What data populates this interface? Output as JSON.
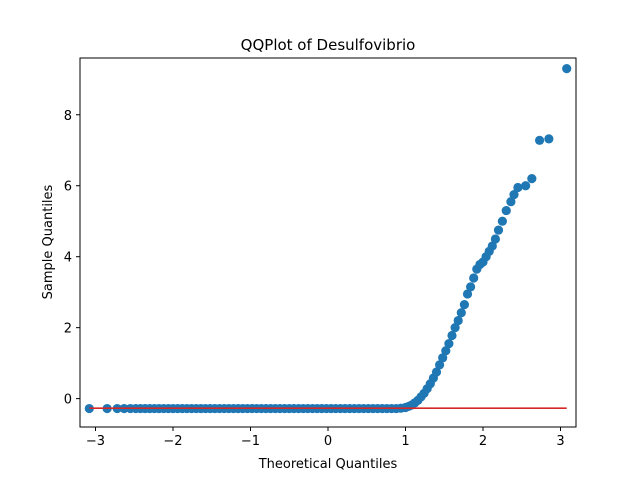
{
  "chart_data": {
    "type": "scatter",
    "title": "QQPlot of Desulfovibrio",
    "xlabel": "Theoretical Quantiles",
    "ylabel": "Sample Quantiles",
    "xlim": [
      -3.2,
      3.2
    ],
    "ylim": [
      -0.8,
      9.6
    ],
    "xticks": [
      -3,
      -2,
      -1,
      0,
      1,
      2,
      3
    ],
    "yticks": [
      0,
      2,
      4,
      6,
      8
    ],
    "grid": false,
    "marker_color": "#1f77b4",
    "line_color": "#d62728",
    "reference_line": {
      "x": [
        -3.08,
        3.08
      ],
      "y": [
        -0.27,
        -0.27
      ]
    },
    "series": [
      {
        "points": [
          [
            -3.08,
            -0.28
          ],
          [
            -2.85,
            -0.28
          ],
          [
            -2.72,
            -0.28
          ],
          [
            -2.63,
            -0.28
          ],
          [
            -2.55,
            -0.28
          ],
          [
            -2.48,
            -0.28
          ],
          [
            -2.42,
            -0.28
          ],
          [
            -2.36,
            -0.28
          ],
          [
            -2.3,
            -0.28
          ],
          [
            -2.24,
            -0.28
          ],
          [
            -2.18,
            -0.28
          ],
          [
            -2.12,
            -0.28
          ],
          [
            -2.06,
            -0.28
          ],
          [
            -2.0,
            -0.28
          ],
          [
            -1.94,
            -0.28
          ],
          [
            -1.88,
            -0.28
          ],
          [
            -1.82,
            -0.28
          ],
          [
            -1.76,
            -0.28
          ],
          [
            -1.7,
            -0.28
          ],
          [
            -1.64,
            -0.28
          ],
          [
            -1.58,
            -0.28
          ],
          [
            -1.52,
            -0.28
          ],
          [
            -1.46,
            -0.28
          ],
          [
            -1.4,
            -0.28
          ],
          [
            -1.34,
            -0.28
          ],
          [
            -1.28,
            -0.28
          ],
          [
            -1.22,
            -0.28
          ],
          [
            -1.16,
            -0.28
          ],
          [
            -1.1,
            -0.28
          ],
          [
            -1.04,
            -0.28
          ],
          [
            -0.98,
            -0.28
          ],
          [
            -0.92,
            -0.28
          ],
          [
            -0.86,
            -0.28
          ],
          [
            -0.8,
            -0.28
          ],
          [
            -0.74,
            -0.28
          ],
          [
            -0.68,
            -0.28
          ],
          [
            -0.62,
            -0.28
          ],
          [
            -0.56,
            -0.28
          ],
          [
            -0.5,
            -0.28
          ],
          [
            -0.44,
            -0.28
          ],
          [
            -0.38,
            -0.28
          ],
          [
            -0.32,
            -0.28
          ],
          [
            -0.26,
            -0.28
          ],
          [
            -0.2,
            -0.28
          ],
          [
            -0.14,
            -0.28
          ],
          [
            -0.08,
            -0.28
          ],
          [
            -0.02,
            -0.28
          ],
          [
            0.04,
            -0.28
          ],
          [
            0.1,
            -0.28
          ],
          [
            0.16,
            -0.28
          ],
          [
            0.22,
            -0.28
          ],
          [
            0.28,
            -0.28
          ],
          [
            0.34,
            -0.28
          ],
          [
            0.4,
            -0.28
          ],
          [
            0.46,
            -0.28
          ],
          [
            0.52,
            -0.28
          ],
          [
            0.58,
            -0.28
          ],
          [
            0.64,
            -0.28
          ],
          [
            0.7,
            -0.28
          ],
          [
            0.76,
            -0.28
          ],
          [
            0.82,
            -0.28
          ],
          [
            0.88,
            -0.28
          ],
          [
            0.94,
            -0.27
          ],
          [
            1.0,
            -0.25
          ],
          [
            1.04,
            -0.22
          ],
          [
            1.08,
            -0.18
          ],
          [
            1.12,
            -0.12
          ],
          [
            1.16,
            -0.05
          ],
          [
            1.2,
            0.05
          ],
          [
            1.24,
            0.15
          ],
          [
            1.28,
            0.28
          ],
          [
            1.32,
            0.42
          ],
          [
            1.36,
            0.58
          ],
          [
            1.4,
            0.75
          ],
          [
            1.44,
            0.95
          ],
          [
            1.48,
            1.15
          ],
          [
            1.52,
            1.35
          ],
          [
            1.56,
            1.55
          ],
          [
            1.6,
            1.78
          ],
          [
            1.64,
            2.0
          ],
          [
            1.68,
            2.2
          ],
          [
            1.72,
            2.42
          ],
          [
            1.76,
            2.65
          ],
          [
            1.8,
            2.95
          ],
          [
            1.84,
            3.15
          ],
          [
            1.88,
            3.4
          ],
          [
            1.92,
            3.65
          ],
          [
            1.96,
            3.78
          ],
          [
            2.0,
            3.85
          ],
          [
            2.04,
            4.0
          ],
          [
            2.08,
            4.15
          ],
          [
            2.12,
            4.3
          ],
          [
            2.16,
            4.5
          ],
          [
            2.2,
            4.75
          ],
          [
            2.25,
            5.0
          ],
          [
            2.3,
            5.3
          ],
          [
            2.36,
            5.55
          ],
          [
            2.4,
            5.75
          ],
          [
            2.45,
            5.95
          ],
          [
            2.55,
            6.0
          ],
          [
            2.63,
            6.2
          ],
          [
            2.73,
            7.28
          ],
          [
            2.85,
            7.32
          ],
          [
            3.08,
            9.3
          ]
        ]
      }
    ]
  }
}
